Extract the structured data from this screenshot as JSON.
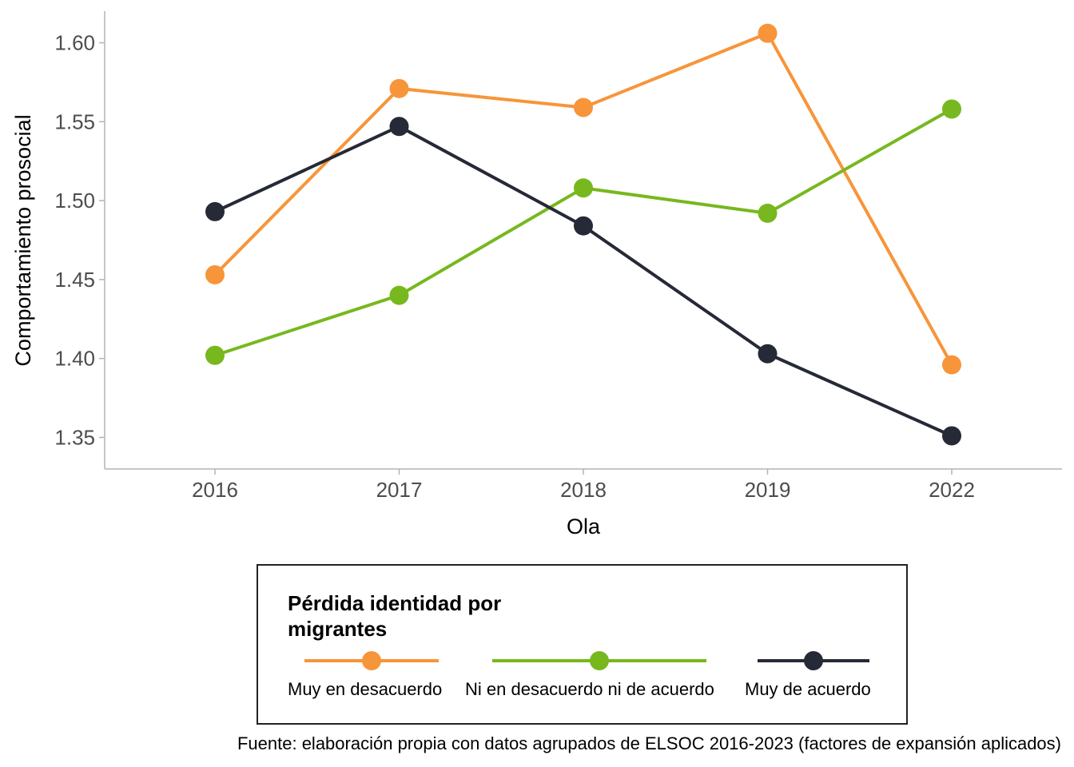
{
  "chart_data": {
    "type": "line",
    "x": [
      "2016",
      "2017",
      "2018",
      "2019",
      "2022"
    ],
    "xlabel": "Ola",
    "ylabel": "Comportamiento prosocial",
    "ylim": [
      1.33,
      1.62
    ],
    "yticks": [
      "1.35",
      "1.40",
      "1.45",
      "1.50",
      "1.55",
      "1.60"
    ],
    "grid": false,
    "legend_title": "Pérdida identidad por migrantes",
    "legend_position": "bottom",
    "series": [
      {
        "name": "Muy en desacuerdo",
        "color": "#f7953a",
        "values": [
          1.453,
          1.571,
          1.559,
          1.606,
          1.396
        ]
      },
      {
        "name": "Ni en desacuerdo ni de acuerdo",
        "color": "#77b81e",
        "values": [
          1.402,
          1.44,
          1.508,
          1.492,
          1.558
        ]
      },
      {
        "name": "Muy de acuerdo",
        "color": "#262936",
        "values": [
          1.493,
          1.547,
          1.484,
          1.403,
          1.351
        ]
      }
    ],
    "caption": "Fuente: elaboración propia con datos agrupados de ELSOC 2016-2023 (factores de expansión aplicados)"
  }
}
